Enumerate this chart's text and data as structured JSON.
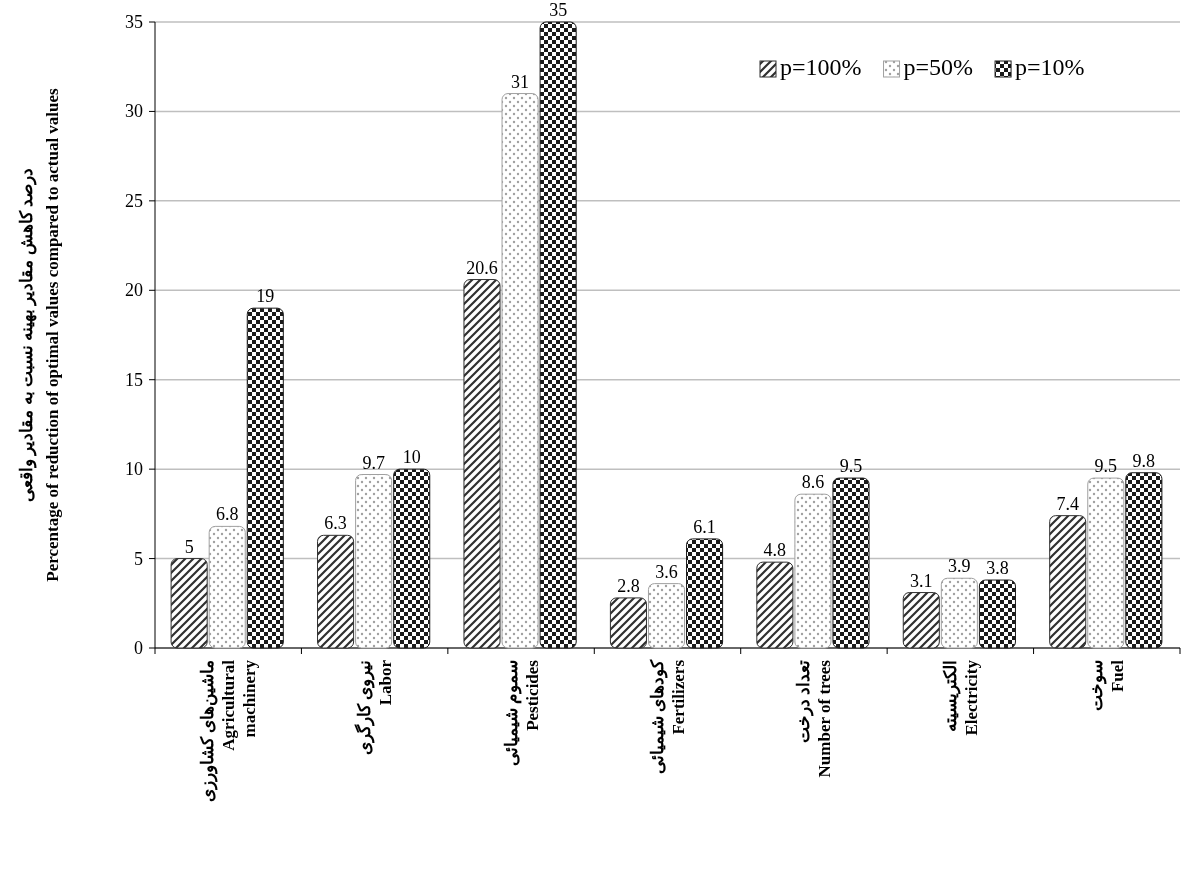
{
  "chart_data": {
    "type": "bar",
    "categories": [
      "ماشین‌های کشاورزی\nAgricultural\nmachinery",
      "نیروی کارگری\nLabor",
      "سموم شیمیائی\nPesticides",
      "کودهای شیمیائی\nFertilizers",
      "تعداد درخت\nNumber of trees",
      "الکتریسیته\nElectricity",
      "سوخت\nFuel"
    ],
    "ylabel": "درصد کاهش مقادیر بهینه نسبت به مقادیر واقعی\nPercentage of reduction of optimal values compared to actual values",
    "series": [
      {
        "name": "p=100%",
        "color": "#303030",
        "values": [
          5,
          6.3,
          20.6,
          2.8,
          4.8,
          3.1,
          7.4
        ]
      },
      {
        "name": "p=50%",
        "color": "#a0a0a0",
        "values": [
          6.8,
          9.7,
          31,
          3.6,
          8.6,
          3.9,
          9.5
        ]
      },
      {
        "name": "p=10%",
        "color": "#1a1a1a",
        "values": [
          19,
          10,
          35,
          6.1,
          9.5,
          3.8,
          9.8
        ]
      }
    ],
    "ylim": [
      0,
      35
    ],
    "yticks": [
      0,
      5,
      10,
      15,
      20,
      25,
      30,
      35
    ],
    "grid": "y",
    "legend": "top right",
    "data_labels": true
  }
}
